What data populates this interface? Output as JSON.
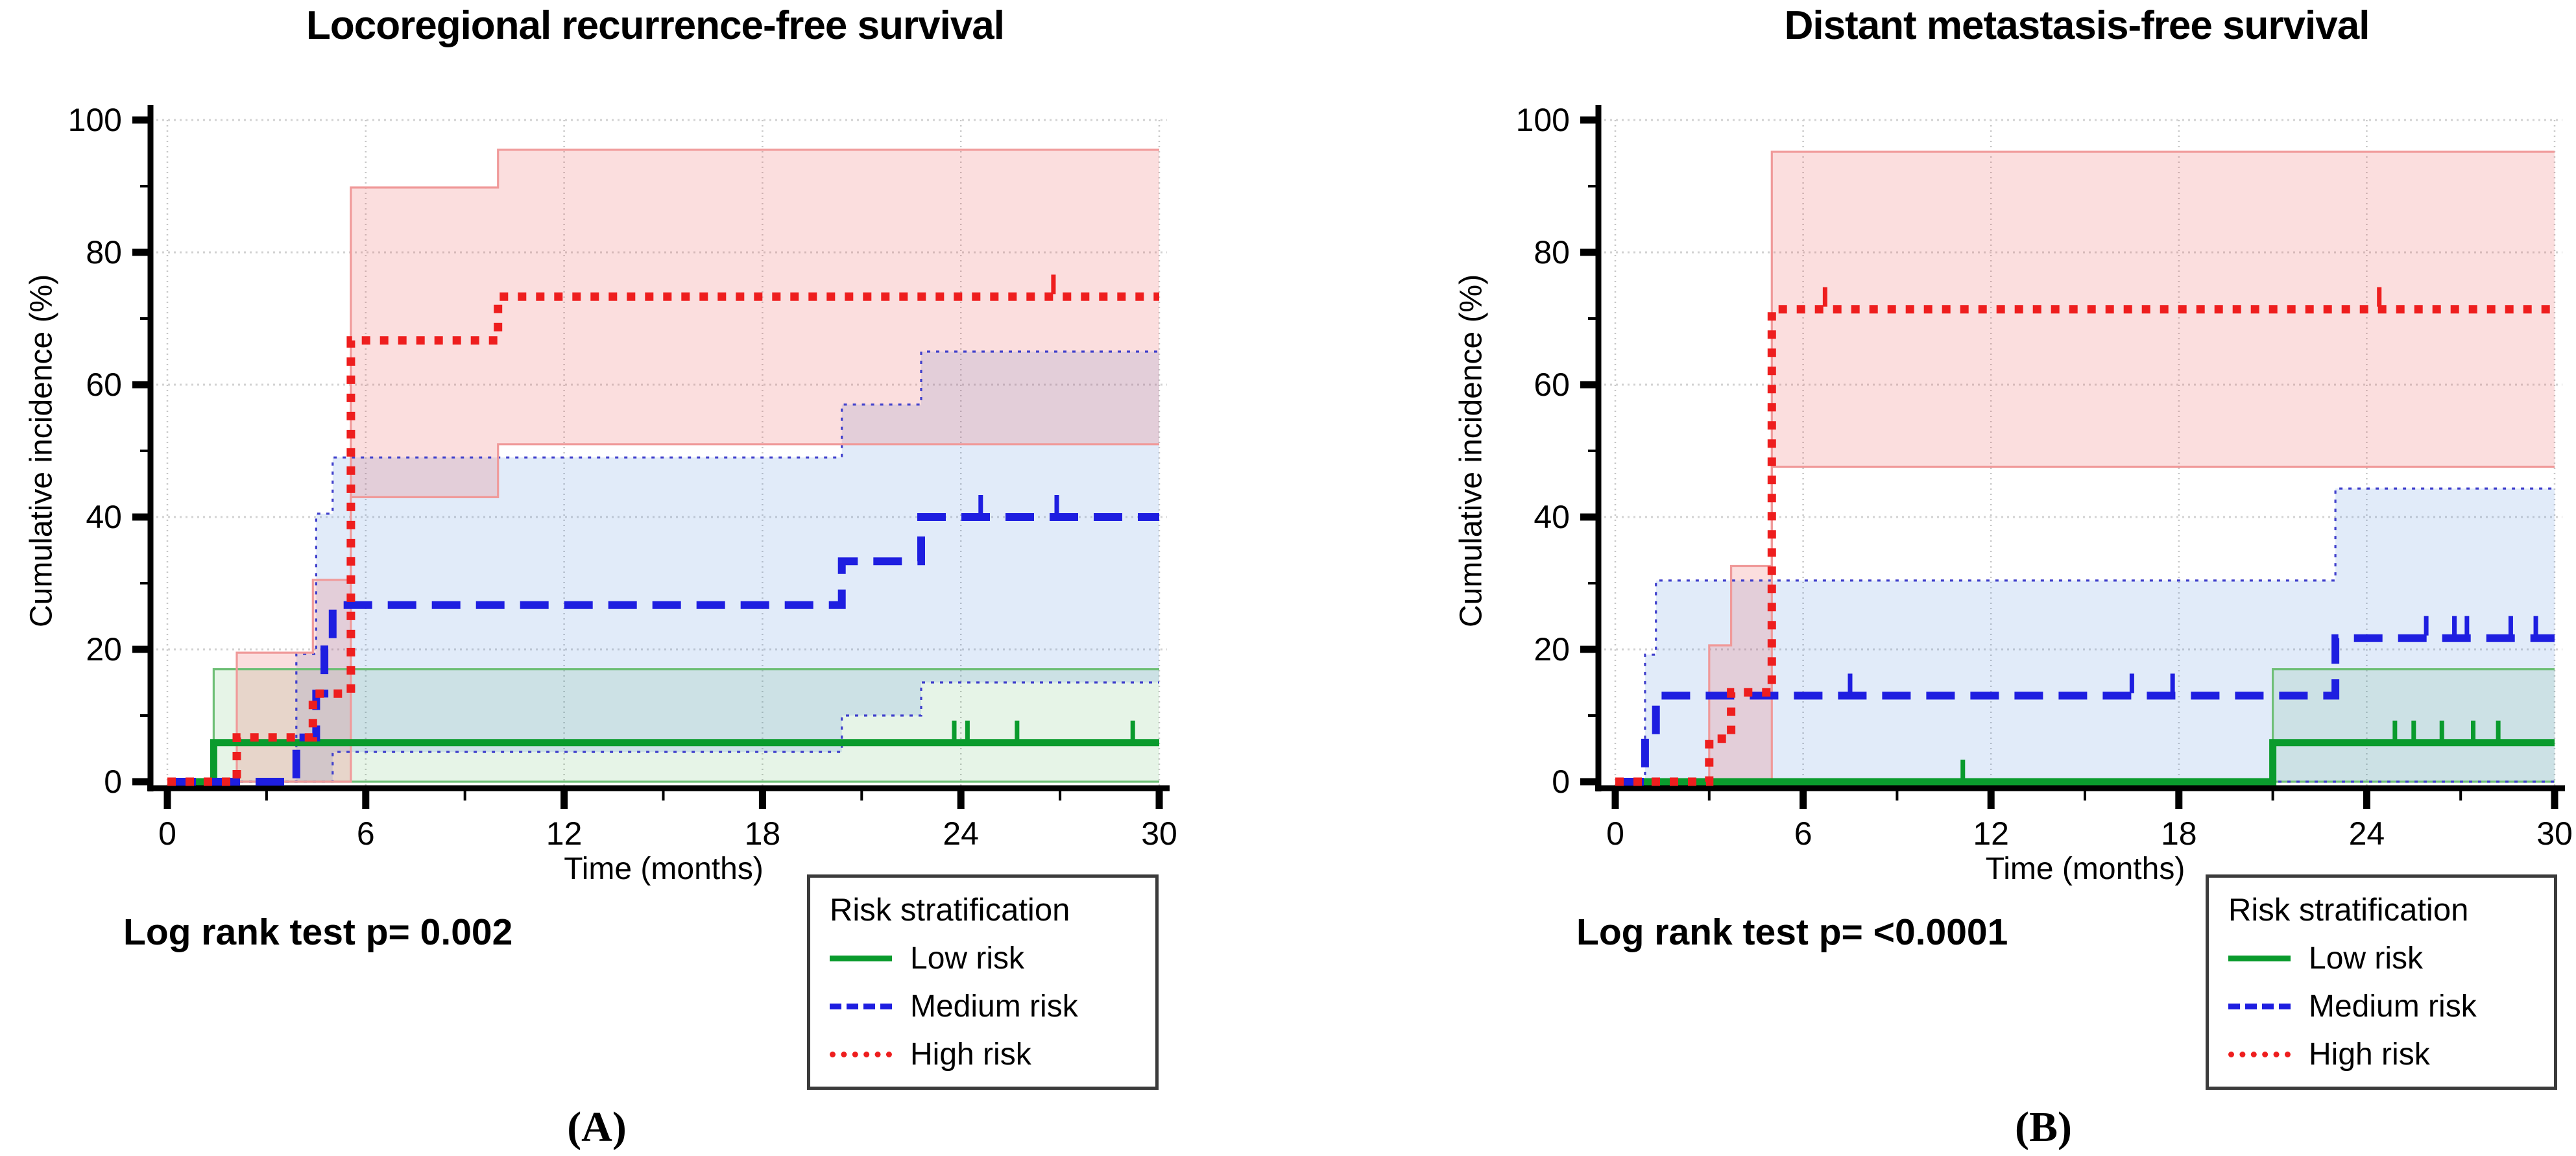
{
  "figure": {
    "background": "#ffffff"
  },
  "chart_data": [
    {
      "type": "line",
      "subtype": "kaplan-meier-cumulative-incidence-step",
      "title": "Locoregional recurrence-free survival",
      "xlabel": "Time (months)",
      "ylabel": "Cumulative incidence (%)",
      "annotation": "Log rank test p= 0.002",
      "panel_label": "(A)",
      "legend_title": "Risk stratification",
      "legend_position": "below-right",
      "grid": "dotted-major",
      "xlim": [
        0,
        30
      ],
      "ylim": [
        0,
        100
      ],
      "xticks": [
        0,
        6,
        12,
        18,
        24,
        30
      ],
      "xticks_minor": [
        3,
        9,
        15,
        21,
        27
      ],
      "yticks": [
        0,
        20,
        40,
        60,
        80,
        100
      ],
      "yticks_minor": [
        10,
        30,
        50,
        70,
        90
      ],
      "series": [
        {
          "name": "Low risk",
          "color": "#0a9b2d",
          "dash": "solid",
          "dash_pattern": "",
          "stroke_width": 11,
          "ci_fill": "rgba(60,170,70,0.13)",
          "ci_edge_color": "#6fbf77",
          "ci_edge_dash": "",
          "steps": [
            [
              0,
              0
            ],
            [
              1.4,
              5.9
            ],
            [
              30,
              5.9
            ]
          ],
          "censors": [
            [
              23.8,
              5.9
            ],
            [
              24.2,
              5.9
            ],
            [
              25.7,
              5.9
            ],
            [
              29.2,
              5.9
            ]
          ],
          "ci_upper": [
            [
              0,
              0
            ],
            [
              1.4,
              17
            ],
            [
              30,
              17
            ]
          ],
          "ci_lower": [
            [
              0,
              0
            ],
            [
              30,
              0
            ]
          ]
        },
        {
          "name": "Medium risk",
          "color": "#1e1ee0",
          "dash": "dashed",
          "dash_pattern": "44 24",
          "stroke_width": 12,
          "ci_fill": "rgba(70,130,220,0.16)",
          "ci_edge_color": "#4040cc",
          "ci_edge_dash": "5 9",
          "steps": [
            [
              0,
              0
            ],
            [
              3.9,
              6.7
            ],
            [
              4.5,
              13.3
            ],
            [
              4.75,
              20
            ],
            [
              5,
              26.7
            ],
            [
              20.4,
              33.3
            ],
            [
              22.8,
              40
            ],
            [
              30,
              40
            ]
          ],
          "censors": [
            [
              24.6,
              40
            ],
            [
              26.9,
              40
            ]
          ],
          "ci_upper": [
            [
              0,
              0
            ],
            [
              3.9,
              19.3
            ],
            [
              4.5,
              40.5
            ],
            [
              5,
              49
            ],
            [
              20.4,
              57
            ],
            [
              22.8,
              65
            ],
            [
              30,
              65
            ]
          ],
          "ci_lower": [
            [
              0,
              0
            ],
            [
              5,
              4.5
            ],
            [
              20.4,
              10
            ],
            [
              22.8,
              15
            ],
            [
              30,
              15
            ]
          ]
        },
        {
          "name": "High risk",
          "color": "#ee1e1e",
          "dash": "dotted",
          "dash_pattern": "13 15",
          "stroke_width": 13,
          "ci_fill": "rgba(235,90,90,0.20)",
          "ci_edge_color": "#f09a9a",
          "ci_edge_dash": "",
          "steps": [
            [
              0,
              0
            ],
            [
              2.1,
              6.7
            ],
            [
              4.4,
              13.3
            ],
            [
              5.55,
              66.7
            ],
            [
              10,
              73.3
            ],
            [
              30,
              73.3
            ]
          ],
          "censors": [
            [
              26.8,
              73.3
            ]
          ],
          "ci_upper": [
            [
              0,
              0
            ],
            [
              2.1,
              19.5
            ],
            [
              4.4,
              30.5
            ],
            [
              5.55,
              89.8
            ],
            [
              10,
              95.5
            ],
            [
              30,
              95.5
            ]
          ],
          "ci_lower": [
            [
              0,
              0
            ],
            [
              5.55,
              43
            ],
            [
              10,
              51
            ],
            [
              30,
              51
            ]
          ]
        }
      ]
    },
    {
      "type": "line",
      "subtype": "kaplan-meier-cumulative-incidence-step",
      "title": "Distant metastasis-free survival",
      "xlabel": "Time (months)",
      "ylabel": "Cumulative incidence (%)",
      "annotation": "Log rank test p= <0.0001",
      "panel_label": "(B)",
      "legend_title": "Risk stratification",
      "legend_position": "below-right",
      "grid": "dotted-major",
      "xlim": [
        0,
        30
      ],
      "ylim": [
        0,
        100
      ],
      "xticks": [
        0,
        6,
        12,
        18,
        24,
        30
      ],
      "xticks_minor": [
        3,
        9,
        15,
        21,
        27
      ],
      "yticks": [
        0,
        20,
        40,
        60,
        80,
        100
      ],
      "yticks_minor": [
        10,
        30,
        50,
        70,
        90
      ],
      "series": [
        {
          "name": "Low risk",
          "color": "#0a9b2d",
          "dash": "solid",
          "dash_pattern": "",
          "stroke_width": 11,
          "ci_fill": "rgba(60,170,70,0.13)",
          "ci_edge_color": "#6fbf77",
          "ci_edge_dash": "",
          "steps": [
            [
              0,
              0
            ],
            [
              21,
              5.9
            ],
            [
              30,
              5.9
            ]
          ],
          "censors": [
            [
              11.1,
              0
            ],
            [
              24.9,
              5.9
            ],
            [
              25.5,
              5.9
            ],
            [
              26.4,
              5.9
            ],
            [
              27.4,
              5.9
            ],
            [
              28.2,
              5.9
            ]
          ],
          "ci_upper": [
            [
              0,
              0
            ],
            [
              21,
              17
            ],
            [
              30,
              17
            ]
          ],
          "ci_lower": [
            [
              0,
              0
            ],
            [
              30,
              0
            ]
          ]
        },
        {
          "name": "Medium risk",
          "color": "#1e1ee0",
          "dash": "dashed",
          "dash_pattern": "44 24",
          "stroke_width": 12,
          "ci_fill": "rgba(70,130,220,0.16)",
          "ci_edge_color": "#4040cc",
          "ci_edge_dash": "5 9",
          "steps": [
            [
              0,
              0
            ],
            [
              0.95,
              6.5
            ],
            [
              1.3,
              13
            ],
            [
              23,
              21.7
            ],
            [
              30,
              21.7
            ]
          ],
          "censors": [
            [
              7.5,
              13
            ],
            [
              16.5,
              13
            ],
            [
              17.8,
              13
            ],
            [
              25.9,
              21.7
            ],
            [
              26.8,
              21.7
            ],
            [
              27.2,
              21.7
            ],
            [
              28.6,
              21.7
            ],
            [
              29.4,
              21.7
            ]
          ],
          "ci_upper": [
            [
              0,
              0
            ],
            [
              0.95,
              19.2
            ],
            [
              1.3,
              30.4
            ],
            [
              23,
              44.3
            ],
            [
              30,
              44.3
            ]
          ],
          "ci_lower": [
            [
              0,
              0
            ],
            [
              30,
              0
            ]
          ]
        },
        {
          "name": "High risk",
          "color": "#ee1e1e",
          "dash": "dotted",
          "dash_pattern": "13 15",
          "stroke_width": 13,
          "ci_fill": "rgba(235,90,90,0.20)",
          "ci_edge_color": "#f09a9a",
          "ci_edge_dash": "",
          "steps": [
            [
              0,
              0
            ],
            [
              3,
              6.5
            ],
            [
              3.7,
              13.5
            ],
            [
              5,
              71.4
            ],
            [
              30,
              71.4
            ]
          ],
          "censors": [
            [
              6.7,
              71.4
            ],
            [
              24.4,
              71.4
            ]
          ],
          "ci_upper": [
            [
              0,
              0
            ],
            [
              3,
              20.6
            ],
            [
              3.7,
              32.6
            ],
            [
              5,
              95.2
            ],
            [
              30,
              95.2
            ]
          ],
          "ci_lower": [
            [
              0,
              0
            ],
            [
              5,
              47.6
            ],
            [
              30,
              47.6
            ]
          ]
        }
      ]
    }
  ]
}
